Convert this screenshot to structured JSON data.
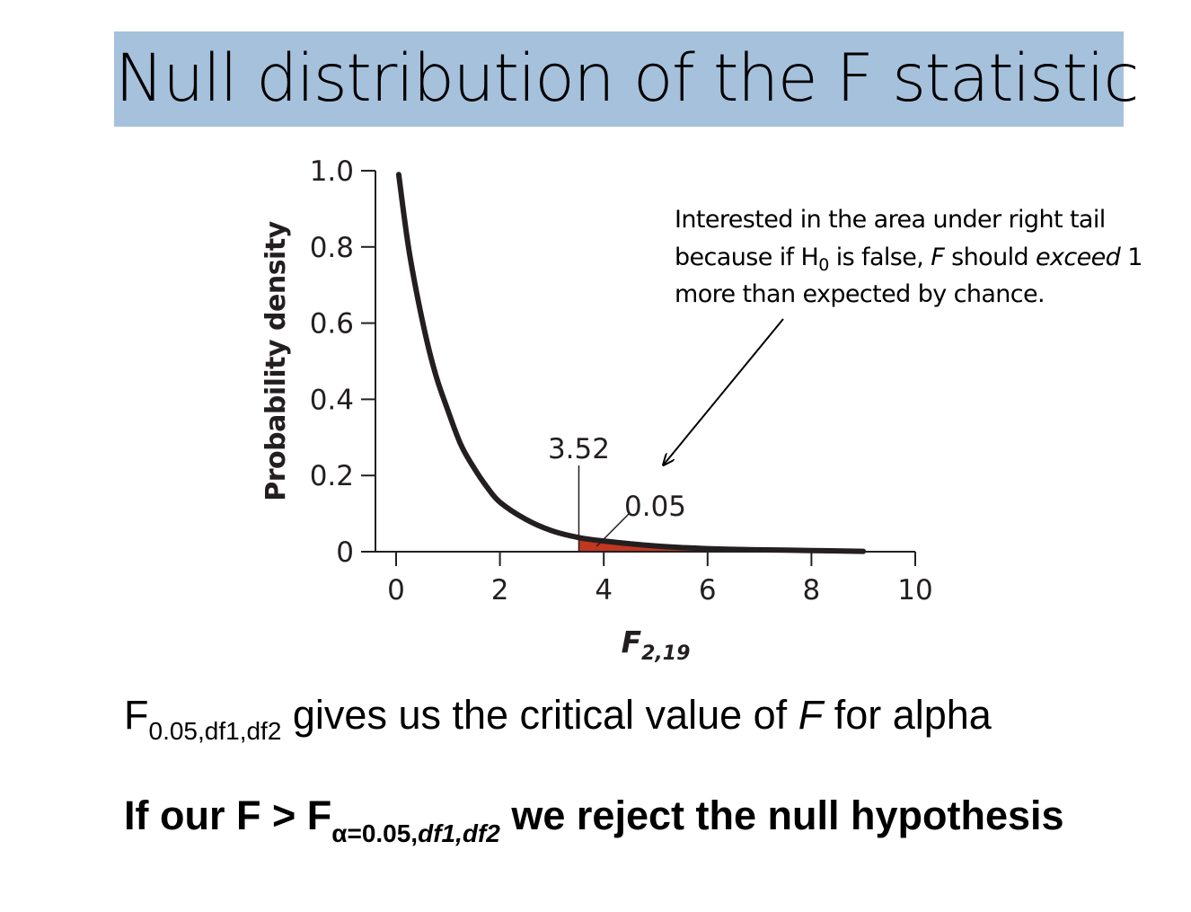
{
  "slide": {
    "title": "Null distribution of the F statistic",
    "annotation": {
      "line1": "Interested in the area under right tail",
      "line2_a": "because if H",
      "line2_sub": "0",
      "line2_b": " is false, ",
      "line2_f": "F",
      "line2_c": " should ",
      "line2_exceed": "exceed",
      "line2_d": " 1",
      "line3": "more than expected by chance."
    },
    "text_line1": {
      "f": "F",
      "sub": "0.05,df1,df2",
      "before_f": " gives us the critical value of ",
      "f_italic": "F",
      "after": " for alpha"
    },
    "text_line2": {
      "prefix": "If our F > F",
      "sub_plain": "α=0.05,",
      "sub_italic": "df1,df2",
      "suffix": " we reject the null hypothesis"
    }
  },
  "colors": {
    "title_band": "#a6c1dc",
    "curve": "#231f20",
    "tail_fill": "#c1371f"
  },
  "chart_data": {
    "type": "line",
    "title": "",
    "xlabel": "F",
    "xlabel_sub": "2,19",
    "ylabel": "Probability density",
    "xlim": [
      0,
      10
    ],
    "ylim": [
      0,
      1.0
    ],
    "x_ticks": [
      "0",
      "2",
      "4",
      "6",
      "8",
      "10"
    ],
    "y_ticks": [
      "1.0",
      "0.8",
      "0.6",
      "0.4",
      "0.2",
      "0"
    ],
    "x_tick_values": [
      0,
      2,
      4,
      6,
      8,
      10
    ],
    "y_tick_values": [
      1.0,
      0.8,
      0.6,
      0.4,
      0.2,
      0
    ],
    "series": [
      {
        "x": [
          0.05,
          0.25,
          0.5,
          0.75,
          1.0,
          1.25,
          1.5,
          1.75,
          2.0,
          2.5,
          3.0,
          3.52,
          4.0,
          5.0,
          6.0,
          7.0,
          8.0,
          9.0
        ],
        "values": [
          0.99,
          0.79,
          0.61,
          0.47,
          0.37,
          0.28,
          0.22,
          0.17,
          0.13,
          0.085,
          0.055,
          0.037,
          0.028,
          0.015,
          0.008,
          0.005,
          0.003,
          0.001
        ]
      }
    ],
    "critical_value": 3.52,
    "critical_label": "3.52",
    "tail_area": 0.05,
    "tail_label": "0.05",
    "grid": false
  }
}
